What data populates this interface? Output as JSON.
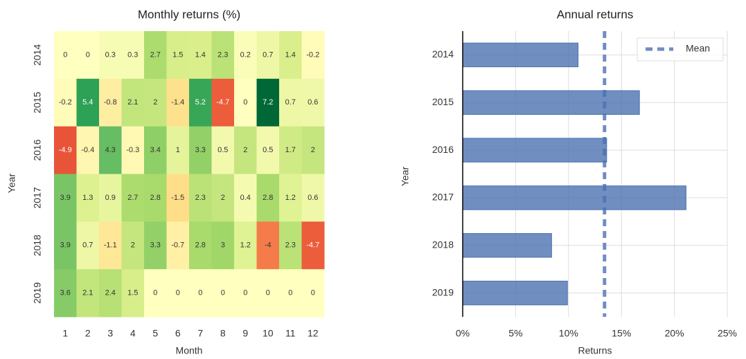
{
  "chart_data": [
    {
      "type": "heatmap",
      "title": "Monthly returns (%)",
      "xlabel": "Month",
      "ylabel": "Year",
      "colormap": "RdYlGn",
      "categories": [
        "1",
        "2",
        "3",
        "4",
        "5",
        "6",
        "7",
        "8",
        "9",
        "10",
        "11",
        "12"
      ],
      "rows": [
        "2014",
        "2015",
        "2016",
        "2017",
        "2018",
        "2019"
      ],
      "values": [
        [
          0,
          0,
          0.3,
          0.3,
          2.7,
          1.5,
          1.4,
          2.3,
          0.2,
          0.7,
          1.4,
          -0.2
        ],
        [
          -0.2,
          5.4,
          -0.8,
          2.1,
          2,
          -1.4,
          5.2,
          -4.7,
          0,
          7.2,
          0.7,
          0.6
        ],
        [
          -4.9,
          -0.4,
          4.3,
          -0.3,
          3.4,
          1,
          3.3,
          0.5,
          2,
          0.5,
          1.7,
          2
        ],
        [
          3.9,
          1.3,
          0.9,
          2.7,
          2.8,
          -1.5,
          2.3,
          2,
          0.4,
          2.8,
          1.2,
          0.6
        ],
        [
          3.9,
          0.7,
          -1.1,
          2,
          3.3,
          -0.7,
          2.8,
          3,
          1.2,
          -4,
          2.3,
          -4.7
        ],
        [
          3.6,
          2.1,
          2.4,
          1.5,
          0,
          0,
          0,
          0,
          0,
          0,
          0,
          0
        ]
      ]
    },
    {
      "type": "barh",
      "title": "Annual returns",
      "xlabel": "Returns",
      "ylabel": "Year",
      "categories": [
        "2014",
        "2015",
        "2016",
        "2017",
        "2018",
        "2019"
      ],
      "values": [
        10.9,
        16.7,
        13.6,
        21.1,
        8.4,
        9.9
      ],
      "color": "#4c72b0",
      "mean": 13.4,
      "mean_label": "Mean",
      "mean_color": "#4c72b0",
      "legend": "upper right",
      "xlim": [
        0,
        25
      ],
      "xticks": [
        {
          "value": 0,
          "label": "0%"
        },
        {
          "value": 5,
          "label": "5%"
        },
        {
          "value": 10,
          "label": "10%"
        },
        {
          "value": 15,
          "label": "15%"
        },
        {
          "value": 20,
          "label": "20%"
        },
        {
          "value": 25,
          "label": "25%"
        }
      ],
      "grid": true
    }
  ]
}
